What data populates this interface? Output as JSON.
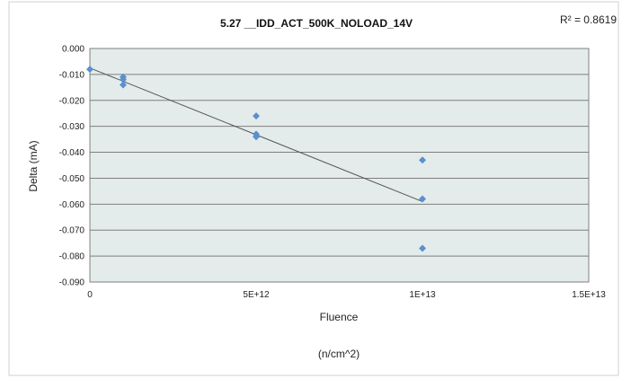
{
  "chart_data": {
    "type": "scatter",
    "title": "5.27 __IDD_ACT_500K_NOLOAD_14V",
    "r_squared_label": "R² = 0.8619",
    "xlabel": "Fluence",
    "xlabel_unit": "(n/cm^2)",
    "ylabel": "Delta (mA)",
    "xlim": [
      0,
      15000000000000
    ],
    "ylim": [
      -0.09,
      0.0
    ],
    "x_ticks": [
      0,
      5000000000000,
      10000000000000,
      15000000000000
    ],
    "x_tick_labels": [
      "0",
      "5E+12",
      "1E+13",
      "1.5E+13"
    ],
    "y_ticks": [
      0.0,
      -0.01,
      -0.02,
      -0.03,
      -0.04,
      -0.05,
      -0.06,
      -0.07,
      -0.08,
      -0.09
    ],
    "y_tick_labels": [
      "0.000",
      "-0.010",
      "-0.020",
      "-0.030",
      "-0.040",
      "-0.050",
      "-0.060",
      "-0.070",
      "-0.080",
      "-0.090"
    ],
    "grid": "horizontal",
    "plot_background": "#e3ecea",
    "marker_color": "#5b8fcf",
    "trendline_color": "#555555",
    "series": [
      {
        "points": [
          {
            "x": 0,
            "y": -0.008
          },
          {
            "x": 1000000000000,
            "y": -0.011
          },
          {
            "x": 1000000000000,
            "y": -0.012
          },
          {
            "x": 1000000000000,
            "y": -0.014
          },
          {
            "x": 5000000000000,
            "y": -0.026
          },
          {
            "x": 5000000000000,
            "y": -0.033
          },
          {
            "x": 5000000000000,
            "y": -0.034
          },
          {
            "x": 10000000000000,
            "y": -0.043
          },
          {
            "x": 10000000000000,
            "y": -0.058
          },
          {
            "x": 10000000000000,
            "y": -0.077
          }
        ]
      }
    ],
    "trendline": {
      "type": "linear",
      "x": [
        0,
        10000000000000
      ],
      "y": [
        -0.0075,
        -0.059
      ]
    }
  }
}
